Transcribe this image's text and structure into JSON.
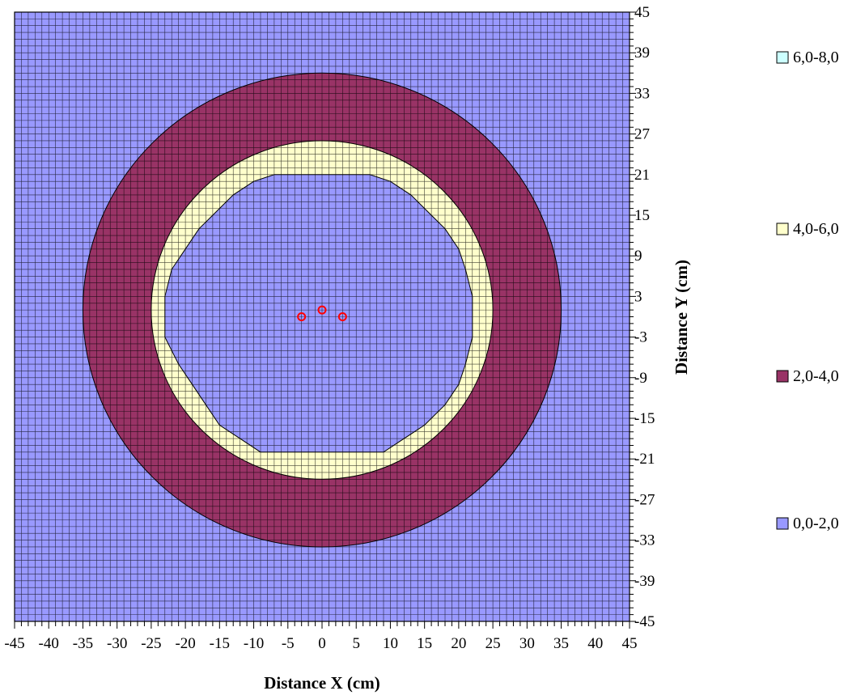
{
  "chart_data": {
    "type": "heatmap",
    "title": "",
    "xlabel": "Distance X (cm)",
    "ylabel": "Distance Y (cm)",
    "xlim": [
      -45,
      45
    ],
    "ylim": [
      -45,
      45
    ],
    "x_ticks": [
      -45,
      -40,
      -35,
      -30,
      -25,
      -20,
      -15,
      -10,
      -5,
      0,
      5,
      10,
      15,
      20,
      25,
      30,
      35,
      40,
      45
    ],
    "y_ticks": [
      45,
      39,
      33,
      27,
      21,
      15,
      9,
      3,
      -3,
      -9,
      -15,
      -21,
      -27,
      -33,
      -39,
      -45
    ],
    "grid": true,
    "grid_step": 1,
    "legend_position": "right",
    "legend": [
      {
        "label": "6,0-8,0",
        "color": "#ccffff"
      },
      {
        "label": "4,0-6,0",
        "color": "#ffffcc"
      },
      {
        "label": "2,0-4,0",
        "color": "#993366"
      },
      {
        "label": "0,0-2,0",
        "color": "#9999ff"
      }
    ],
    "regions": [
      {
        "band": "0,0-2,0",
        "shape": "background"
      },
      {
        "band": "2,0-4,0",
        "shape": "circle",
        "center": [
          0,
          1
        ],
        "radius": 35
      },
      {
        "band": "4,0-6,0",
        "shape": "circle",
        "center": [
          0,
          1
        ],
        "radius": 25
      },
      {
        "band": "0,0-2,0",
        "shape": "polygon",
        "points": [
          [
            -9,
            -20
          ],
          [
            -12,
            -18
          ],
          [
            -15,
            -16
          ],
          [
            -17,
            -13
          ],
          [
            -19,
            -10
          ],
          [
            -21,
            -7
          ],
          [
            -22,
            -5
          ],
          [
            -23,
            -3
          ],
          [
            -23,
            3
          ],
          [
            -22,
            7
          ],
          [
            -20,
            10
          ],
          [
            -18,
            13
          ],
          [
            -16,
            15
          ],
          [
            -13,
            18
          ],
          [
            -10,
            20
          ],
          [
            -7,
            21
          ],
          [
            7,
            21
          ],
          [
            10,
            20
          ],
          [
            13,
            18
          ],
          [
            16,
            15
          ],
          [
            18,
            13
          ],
          [
            20,
            10
          ],
          [
            21,
            7
          ],
          [
            22,
            3
          ],
          [
            22,
            -3
          ],
          [
            21,
            -7
          ],
          [
            20,
            -10
          ],
          [
            18,
            -13
          ],
          [
            15,
            -16
          ],
          [
            12,
            -18
          ],
          [
            9,
            -20
          ]
        ]
      }
    ],
    "markers": [
      {
        "x": -3,
        "y": 0,
        "color": "#ff0000"
      },
      {
        "x": 0,
        "y": 1,
        "color": "#ff0000"
      },
      {
        "x": 3,
        "y": 0,
        "color": "#ff0000"
      }
    ]
  }
}
